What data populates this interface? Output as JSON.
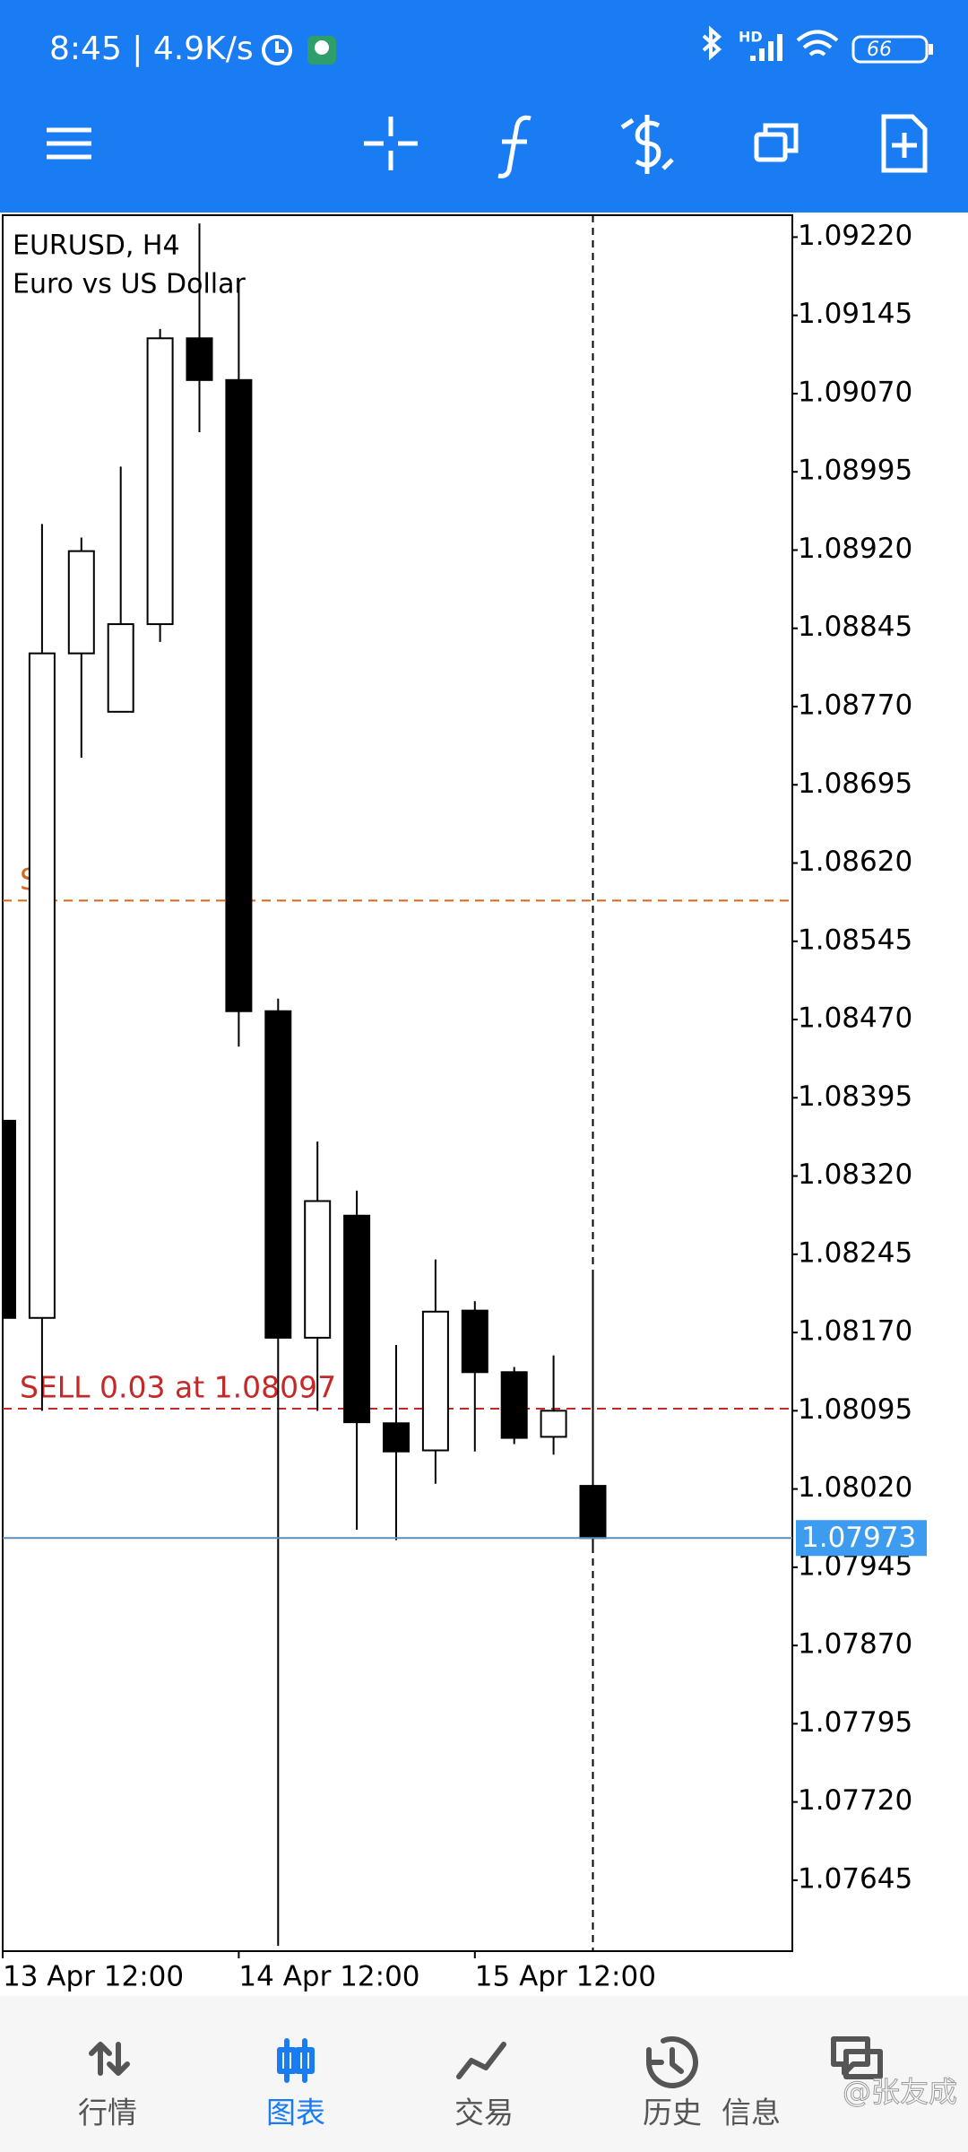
{
  "status_bar": {
    "left": "8:45 | 4.9K/s",
    "network": "HD",
    "battery": "66"
  },
  "chart_data": {
    "type": "candlestick",
    "symbol": "EURUSD, H4",
    "description": "Euro vs US Dollar",
    "categories": [
      "13 Apr 12:00",
      null,
      null,
      null,
      null,
      null,
      "14 Apr 12:00",
      null,
      null,
      null,
      null,
      null,
      "15 Apr 12:00",
      null,
      null,
      null
    ],
    "open": [
      1.08373,
      1.08184,
      1.08821,
      1.08765,
      1.08849,
      1.09123,
      1.09083,
      1.08478,
      1.08165,
      1.08282,
      1.08083,
      1.08057,
      1.08191,
      1.08132,
      1.0807,
      1.08023
    ],
    "high": [
      1.08373,
      1.08945,
      1.08932,
      1.09,
      1.09132,
      1.09233,
      1.09178,
      1.0849,
      1.08353,
      1.08306,
      1.08158,
      1.0824,
      1.082,
      1.08137,
      1.08148,
      1.08227
    ],
    "low": [
      1.08184,
      1.08095,
      1.08721,
      1.08765,
      1.08832,
      1.09033,
      1.08444,
      1.07582,
      1.08095,
      1.07981,
      1.07971,
      1.08025,
      1.08056,
      1.08063,
      1.08053,
      1.07961
    ],
    "close": [
      1.08184,
      1.08821,
      1.08919,
      1.08849,
      1.09123,
      1.09083,
      1.08478,
      1.08165,
      1.08296,
      1.08084,
      1.08056,
      1.0819,
      1.08132,
      1.08069,
      1.08095,
      1.07973
    ],
    "up_color": "#ffffff",
    "down_color": "#000000",
    "ylim": [
      1.07577,
      1.09241
    ],
    "yticks": [
      {
        "value": 1.0922,
        "label": "1.09220"
      },
      1.09145,
      {
        "value": 1.0907,
        "label": "1.09070"
      },
      1.08995,
      {
        "value": 1.0892,
        "label": "1.08920"
      },
      1.08845,
      {
        "value": 1.0877,
        "label": "1.08770"
      },
      1.08695,
      {
        "value": 1.0862,
        "label": "1.08620"
      },
      1.08545,
      {
        "value": 1.0847,
        "label": "1.08470"
      },
      1.08395,
      {
        "value": 1.0832,
        "label": "1.08320"
      },
      1.08245,
      {
        "value": 1.0817,
        "label": "1.08170"
      },
      1.08095,
      {
        "value": 1.0802,
        "label": "1.08020"
      },
      1.07945,
      {
        "value": 1.0787,
        "label": "1.07870"
      },
      1.07795,
      {
        "value": 1.0772,
        "label": "1.07720"
      },
      1.07645
    ],
    "levels": [
      {
        "label": "SELL 0.03 at 1.08097",
        "value": 1.08097,
        "color": "#c62828"
      },
      {
        "label": "S",
        "value": 1.08584,
        "color": "#d2691e"
      }
    ],
    "bid": 1.07973,
    "bid_color": "#3d9cf0"
  },
  "nav": {
    "items": [
      "行情",
      "图表",
      "交易",
      "历史",
      "信息"
    ],
    "active": 1,
    "active_color": "#1a7cf2",
    "color": "#555555"
  },
  "watermark": "@张友成"
}
